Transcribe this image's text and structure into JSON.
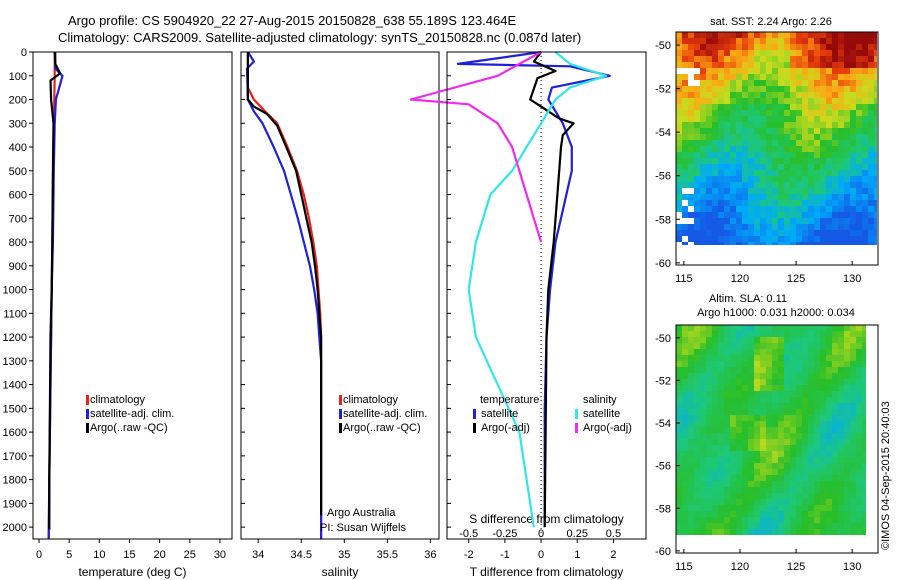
{
  "header": {
    "line1": "Argo profile: CS 5904920_22 27-Aug-2015 20150828_638 55.189S 123.464E",
    "line2": "Climatology: CARS2009. Satellite-adjusted climatology: synTS_20150828.nc (0.087d later)"
  },
  "colors": {
    "climatology": "#e8211b",
    "satellite": "#2020d8",
    "argo": "#000000",
    "sal_satellite": "#33e6e6",
    "sal_argo": "#f02af0",
    "frame": "#000000"
  },
  "chart_data": [
    {
      "name": "temperature-panel",
      "type": "line",
      "xlabel": "temperature (deg C)",
      "ylabel": "",
      "xlim": [
        -1,
        32
      ],
      "xticks": [
        0,
        5,
        10,
        15,
        20,
        25,
        30
      ],
      "ylim": [
        0,
        2050
      ],
      "yticks": [
        0,
        100,
        200,
        300,
        400,
        500,
        600,
        700,
        800,
        900,
        1000,
        1100,
        1200,
        1300,
        1400,
        1500,
        1600,
        1700,
        1800,
        1900,
        2000
      ],
      "legend": [
        "climatology",
        "satellite-adj. clim.",
        "Argo(..raw -QC)"
      ],
      "series": [
        {
          "name": "climatology",
          "x": [
            2.6,
            2.6,
            2.5,
            2.4,
            2.3,
            2.2,
            2.1,
            2.0,
            1.9,
            1.8,
            1.7,
            1.6
          ],
          "y": [
            0,
            100,
            250,
            400,
            600,
            800,
            1000,
            1200,
            1400,
            1600,
            1800,
            2050
          ]
        },
        {
          "name": "satellite-adj. clim.",
          "x": [
            2.7,
            2.7,
            3.9,
            2.8,
            2.6,
            2.45,
            2.3,
            2.1,
            2.0,
            1.9,
            1.8,
            1.7,
            1.6
          ],
          "y": [
            0,
            70,
            100,
            200,
            300,
            500,
            800,
            1000,
            1200,
            1400,
            1600,
            1800,
            2050
          ]
        },
        {
          "name": "Argo(..raw -QC)",
          "x": [
            2.6,
            2.7,
            3.5,
            1.9,
            2.0,
            2.4,
            2.3,
            2.2,
            2.1,
            1.9,
            1.8,
            1.7,
            1.7
          ],
          "y": [
            0,
            50,
            90,
            120,
            200,
            300,
            500,
            800,
            1000,
            1200,
            1500,
            1800,
            2010
          ]
        }
      ]
    },
    {
      "name": "salinity-panel",
      "type": "line",
      "xlabel": "salinity",
      "xlim": [
        33.8,
        36.1
      ],
      "xticks": [
        34,
        34.5,
        35,
        35.5,
        36
      ],
      "ylim": [
        0,
        2050
      ],
      "legend": [
        "climatology",
        "satellite-adj. clim.",
        "Argo(..raw -QC)"
      ],
      "annotation": [
        "Argo Australia",
        "PI: Susan Wijffels"
      ],
      "series": [
        {
          "name": "climatology",
          "x": [
            33.88,
            33.88,
            33.95,
            34.08,
            34.22,
            34.34,
            34.45,
            34.53,
            34.59,
            34.64,
            34.68,
            34.7,
            34.72,
            34.73,
            34.73,
            34.73
          ],
          "y": [
            0,
            150,
            200,
            250,
            300,
            400,
            500,
            600,
            700,
            800,
            900,
            1000,
            1100,
            1200,
            1300,
            2050
          ]
        },
        {
          "name": "satellite-adj. clim.",
          "x": [
            33.88,
            33.95,
            33.87,
            33.88,
            33.95,
            34.05,
            34.18,
            34.3,
            34.38,
            34.46,
            34.53,
            34.6,
            34.65,
            34.69,
            34.71,
            34.73,
            34.73
          ],
          "y": [
            0,
            40,
            70,
            200,
            250,
            300,
            400,
            500,
            600,
            700,
            800,
            900,
            1000,
            1100,
            1200,
            1300,
            2050
          ]
        },
        {
          "name": "Argo(..raw -QC)",
          "x": [
            33.88,
            33.88,
            33.95,
            34.1,
            34.22,
            34.35,
            34.44,
            34.5,
            34.56,
            34.62,
            34.66,
            34.69,
            34.71,
            34.73,
            34.73
          ],
          "y": [
            0,
            200,
            230,
            260,
            310,
            420,
            500,
            600,
            700,
            800,
            900,
            1000,
            1100,
            1200,
            1950
          ]
        }
      ]
    },
    {
      "name": "difference-panel",
      "type": "line",
      "xlabel": "T difference from climatology",
      "xlabel2": "S difference from climatology",
      "xlim": [
        -2.6,
        2.9
      ],
      "xticks": [
        -2,
        -1,
        0,
        1,
        2
      ],
      "xticks2": [
        -0.5,
        -0.25,
        0,
        0.25,
        0.5
      ],
      "xticks2_labels": [
        "-0.5",
        "-0.25",
        "0",
        "0.25",
        "0.5"
      ],
      "ylim": [
        0,
        2050
      ],
      "legend": {
        "temperature_header": "temperature",
        "salinity_header": "salinity",
        "entries": [
          "satellite",
          "Argo(-adj)",
          "satellite",
          "Argo(-adj)"
        ]
      },
      "series": [
        {
          "name": "temperature satellite",
          "x": [
            0,
            -2.3,
            0.8,
            1.9,
            0.3,
            0.2,
            0.6,
            0.85,
            0.85,
            0.7,
            0.55,
            0.4,
            0.25,
            0.15,
            0.1,
            0.1
          ],
          "y": [
            0,
            50,
            60,
            100,
            150,
            200,
            300,
            400,
            500,
            600,
            700,
            800,
            1000,
            1200,
            1500,
            2000
          ]
        },
        {
          "name": "temperature Argo(-adj)",
          "x": [
            0,
            -0.2,
            0.4,
            -0.1,
            -0.3,
            0,
            0.5,
            0.9,
            0.6,
            0.55,
            0.45,
            0.35,
            0.2,
            0.15,
            0.1
          ],
          "y": [
            0,
            40,
            80,
            110,
            200,
            230,
            280,
            300,
            350,
            400,
            600,
            800,
            1000,
            1200,
            2000
          ]
        },
        {
          "name": "salinity satellite",
          "x": [
            0.1,
            0.2,
            0.45,
            0.2,
            0.1,
            0,
            -0.1,
            -0.2,
            -0.35,
            -0.45,
            -0.5,
            -0.45,
            -0.3,
            -0.15,
            -0.05
          ],
          "y": [
            0,
            50,
            100,
            150,
            200,
            300,
            400,
            500,
            600,
            800,
            1000,
            1200,
            1400,
            1600,
            2000
          ]
        },
        {
          "name": "salinity Argo(-adj)",
          "x": [
            0,
            -0.3,
            -0.9,
            -0.5,
            -0.3,
            -0.2,
            -0.15,
            -0.1,
            -0.05,
            0
          ],
          "y": [
            0,
            100,
            200,
            220,
            300,
            400,
            500,
            600,
            700,
            800
          ]
        }
      ]
    },
    {
      "name": "sst-map",
      "type": "heatmap",
      "title": "sat. SST: 2.24  Argo: 2.26",
      "xlim": [
        114.3,
        132.3
      ],
      "ylim": [
        -60.1,
        -49.4
      ],
      "xticks": [
        115,
        120,
        125,
        130
      ],
      "yticks": [
        -50,
        -52,
        -54,
        -56,
        -58,
        -60
      ]
    },
    {
      "name": "sla-map",
      "type": "heatmap",
      "title": "Altim. SLA: 0.11",
      "subtitle": "Argo h1000: 0.031 h2000: 0.034",
      "xlim": [
        114.3,
        132.3
      ],
      "ylim": [
        -60.1,
        -49.4
      ],
      "xticks": [
        115,
        120,
        125,
        130
      ],
      "yticks": [
        -50,
        -52,
        -54,
        -56,
        -58,
        -60
      ]
    }
  ],
  "credit": "©IMOS 04-Sep-2015 20:40:03"
}
